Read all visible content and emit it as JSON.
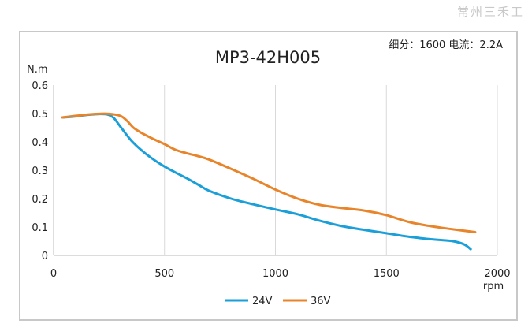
{
  "watermark": "常州三禾工",
  "chart_data": {
    "type": "line",
    "title": "MP3-42H005",
    "subtitle": "细分：1600 电流：2.2A",
    "xlabel": "rpm",
    "ylabel": "N.m",
    "xlim": [
      0,
      2000
    ],
    "ylim": [
      0,
      0.6
    ],
    "xticks": [
      0,
      500,
      1000,
      1500,
      2000
    ],
    "yticks": [
      0,
      0.1,
      0.2,
      0.3,
      0.4,
      0.5,
      0.6
    ],
    "grid": "vertical",
    "legend_position": "bottom-center",
    "series": [
      {
        "name": "24V",
        "color": "#1a9fd9",
        "x": [
          40,
          100,
          150,
          200,
          240,
          270,
          300,
          350,
          400,
          450,
          500,
          550,
          600,
          650,
          700,
          800,
          900,
          1000,
          1100,
          1200,
          1300,
          1400,
          1500,
          1600,
          1700,
          1800,
          1850,
          1880
        ],
        "y": [
          0.486,
          0.49,
          0.495,
          0.498,
          0.497,
          0.485,
          0.455,
          0.405,
          0.368,
          0.338,
          0.313,
          0.292,
          0.272,
          0.25,
          0.228,
          0.2,
          0.18,
          0.162,
          0.145,
          0.122,
          0.103,
          0.09,
          0.078,
          0.066,
          0.057,
          0.05,
          0.039,
          0.022
        ]
      },
      {
        "name": "36V",
        "color": "#e8842a",
        "x": [
          40,
          100,
          150,
          200,
          250,
          300,
          330,
          360,
          400,
          450,
          500,
          550,
          600,
          650,
          700,
          800,
          900,
          1000,
          1100,
          1200,
          1300,
          1400,
          1500,
          1600,
          1700,
          1800,
          1900
        ],
        "y": [
          0.486,
          0.492,
          0.496,
          0.499,
          0.499,
          0.492,
          0.475,
          0.45,
          0.43,
          0.41,
          0.392,
          0.372,
          0.36,
          0.35,
          0.338,
          0.305,
          0.27,
          0.232,
          0.2,
          0.178,
          0.167,
          0.158,
          0.142,
          0.118,
          0.103,
          0.092,
          0.082
        ]
      }
    ]
  }
}
